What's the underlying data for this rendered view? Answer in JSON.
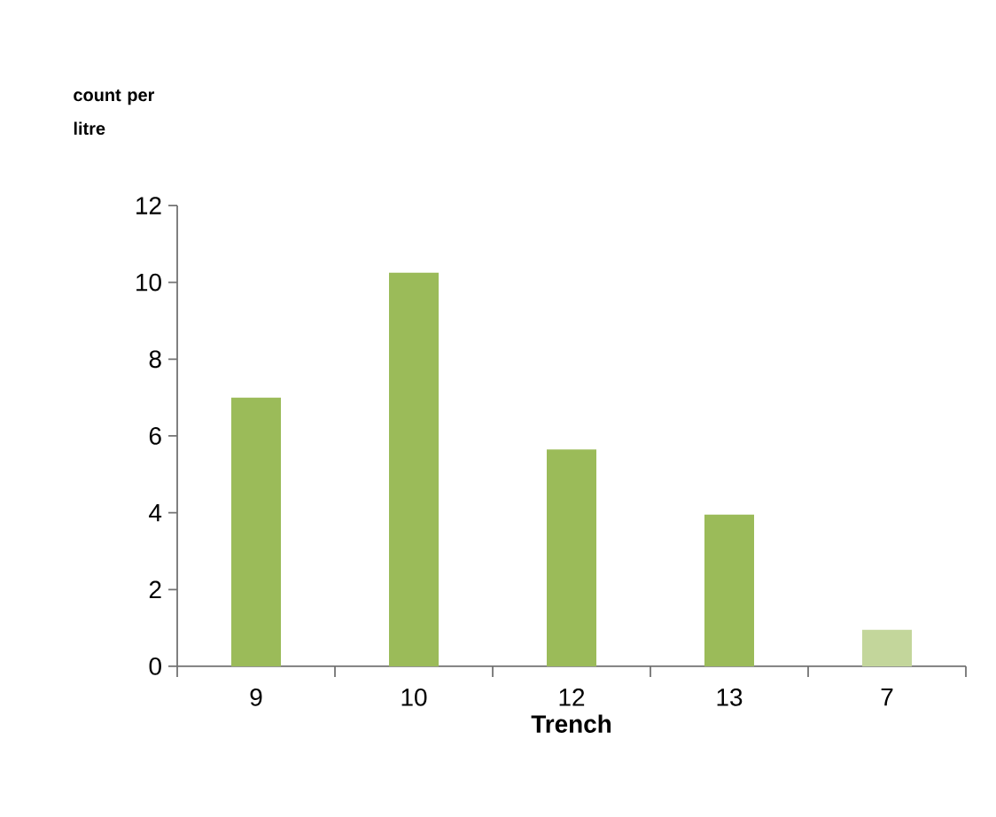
{
  "chart_data": {
    "type": "bar",
    "xlabel": "Trench",
    "ylabel": "count per litre",
    "categories": [
      "9",
      "10",
      "12",
      "13",
      "7"
    ],
    "values": [
      7.0,
      10.25,
      5.65,
      3.95,
      0.95
    ],
    "colors": [
      "#9bbb59",
      "#9bbb59",
      "#9bbb59",
      "#9bbb59",
      "#c3d69b"
    ],
    "ylim": [
      0,
      12
    ],
    "yticks": [
      0,
      2,
      4,
      6,
      8,
      10,
      12
    ]
  }
}
